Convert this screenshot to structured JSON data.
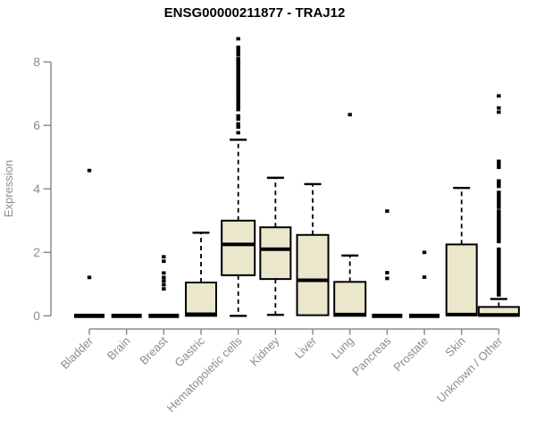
{
  "chart_data": {
    "type": "boxplot",
    "title": "ENSG00000211877 - TRAJ12",
    "ylabel": "Expression",
    "xlabel": "",
    "ylim": [
      0,
      8.8
    ],
    "yticks": [
      0,
      2,
      4,
      6,
      8
    ],
    "grid": "off",
    "legend": "none",
    "categories": [
      "Bladder",
      "Brain",
      "Breast",
      "Gastric",
      "Hematopoietic cells",
      "Kidney",
      "Liver",
      "Lung",
      "Pancreas",
      "Prostate",
      "Skin",
      "Unknown / Other"
    ],
    "series": [
      {
        "category": "Bladder",
        "q1": 0,
        "median": 0,
        "q3": 0,
        "whisker_low": 0,
        "whisker_high": 0,
        "outliers": [
          1.21,
          4.58
        ]
      },
      {
        "category": "Brain",
        "q1": 0,
        "median": 0,
        "q3": 0,
        "whisker_low": 0,
        "whisker_high": 0,
        "outliers": []
      },
      {
        "category": "Breast",
        "q1": 0,
        "median": 0,
        "q3": 0,
        "whisker_low": 0,
        "whisker_high": 0,
        "outliers": [
          0.85,
          0.98,
          1.1,
          1.21,
          1.35,
          1.72,
          1.86
        ]
      },
      {
        "category": "Gastric",
        "q1": 0,
        "median": 0.05,
        "q3": 1.05,
        "whisker_low": 0,
        "whisker_high": 2.62,
        "outliers": []
      },
      {
        "category": "Hematopoietic cells",
        "q1": 1.28,
        "median": 2.25,
        "q3": 3.0,
        "whisker_low": 0,
        "whisker_high": 5.55,
        "outliers": [
          5.77,
          5.95,
          6.05,
          6.2,
          6.3,
          6.5,
          6.58,
          6.68,
          6.76,
          6.84,
          6.9,
          6.96,
          7.02,
          7.08,
          7.14,
          7.2,
          7.26,
          7.32,
          7.38,
          7.44,
          7.5,
          7.56,
          7.62,
          7.68,
          7.74,
          7.8,
          7.86,
          7.92,
          7.98,
          8.04,
          8.1,
          8.22,
          8.3,
          8.38,
          8.46,
          8.73
        ]
      },
      {
        "category": "Kidney",
        "q1": 1.16,
        "median": 2.1,
        "q3": 2.79,
        "whisker_low": 0.03,
        "whisker_high": 4.35,
        "outliers": []
      },
      {
        "category": "Liver",
        "q1": 0.02,
        "median": 1.12,
        "q3": 2.55,
        "whisker_low": 0.02,
        "whisker_high": 4.15,
        "outliers": []
      },
      {
        "category": "Lung",
        "q1": 0,
        "median": 0.04,
        "q3": 1.07,
        "whisker_low": 0,
        "whisker_high": 1.9,
        "outliers": [
          6.34
        ]
      },
      {
        "category": "Pancreas",
        "q1": 0,
        "median": 0,
        "q3": 0,
        "whisker_low": 0,
        "whisker_high": 0,
        "outliers": [
          1.18,
          1.36,
          3.3
        ]
      },
      {
        "category": "Prostate",
        "q1": 0,
        "median": 0,
        "q3": 0,
        "whisker_low": 0,
        "whisker_high": 0,
        "outliers": [
          1.22,
          2.0
        ]
      },
      {
        "category": "Skin",
        "q1": 0.02,
        "median": 0.04,
        "q3": 2.25,
        "whisker_low": 0.02,
        "whisker_high": 4.03,
        "outliers": []
      },
      {
        "category": "Unknown / Other",
        "q1": 0,
        "median": 0.03,
        "q3": 0.28,
        "whisker_low": 0,
        "whisker_high": 0.53,
        "outliers": [
          0.66,
          0.73,
          0.82,
          0.9,
          0.98,
          1.06,
          1.14,
          1.22,
          1.3,
          1.38,
          1.46,
          1.54,
          1.62,
          1.7,
          1.78,
          1.86,
          1.94,
          2.02,
          2.1,
          2.34,
          2.42,
          2.5,
          2.58,
          2.66,
          2.74,
          2.82,
          2.9,
          2.98,
          3.06,
          3.14,
          3.22,
          3.3,
          3.42,
          3.5,
          3.6,
          3.7,
          3.8,
          3.89,
          4.08,
          4.16,
          4.25,
          4.68,
          4.78,
          4.87,
          6.42,
          6.55,
          6.93
        ]
      }
    ],
    "colors": {
      "box_fill": "#ebe7cc",
      "box_stroke": "#000000",
      "median": "#000000",
      "outlier": "#000000",
      "axis": "#8c8c8c",
      "tick_label": "#8c8c8c",
      "title": "#000000"
    }
  }
}
